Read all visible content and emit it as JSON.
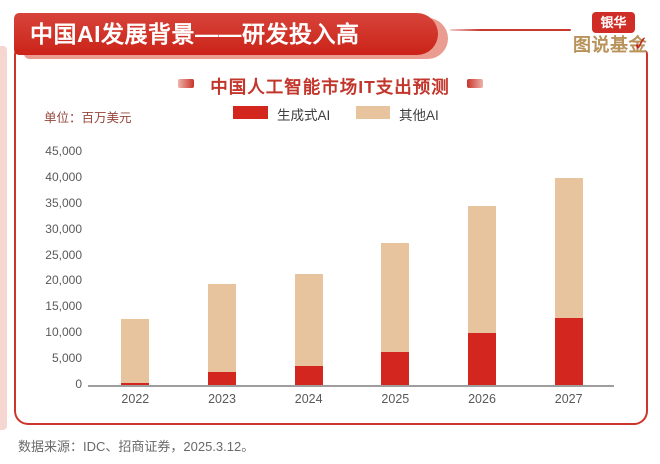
{
  "header": {
    "title": "中国AI发展背景——研发投入高"
  },
  "logo": {
    "brand": "银华",
    "series": "图说基金",
    "checkmark_icon": "✓"
  },
  "chart": {
    "title": "中国人工智能市场IT支出预测",
    "unit_label": "单位：百万美元"
  },
  "chart_data": {
    "type": "bar",
    "stacked": true,
    "title": "中国人工智能市场IT支出预测",
    "unit": "百万美元",
    "categories": [
      "2022",
      "2023",
      "2024",
      "2025",
      "2026",
      "2027"
    ],
    "series": [
      {
        "name": "生成式AI",
        "color": "#d3261f",
        "values": [
          400,
          2500,
          3700,
          6300,
          10000,
          13000
        ]
      },
      {
        "name": "其他AI",
        "color": "#e7c49e",
        "values": [
          12400,
          17000,
          17800,
          21200,
          24500,
          27000
        ]
      }
    ],
    "ylim": [
      0,
      45000
    ],
    "ytick_step": 5000,
    "ytick_labels": [
      "0",
      "5,000",
      "10,000",
      "15,000",
      "20,000",
      "25,000",
      "30,000",
      "35,000",
      "40,000",
      "45,000"
    ],
    "legend_position": "top",
    "grid": false
  },
  "footer": {
    "source": "数据来源：IDC、招商证券，2025.3.12。"
  }
}
